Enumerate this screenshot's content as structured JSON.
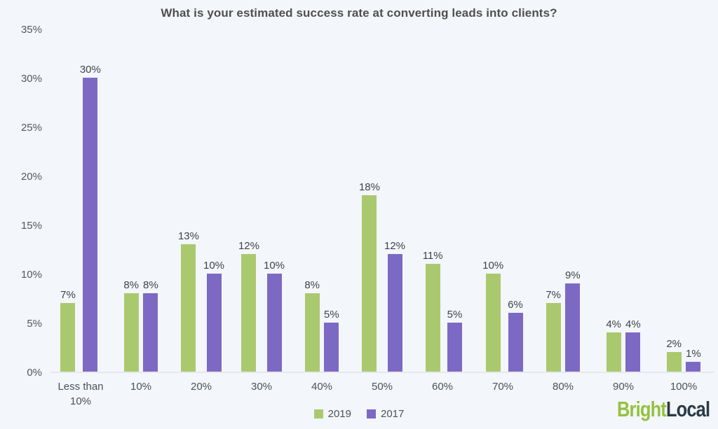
{
  "chart_data": {
    "type": "bar",
    "title": "What is your estimated success rate at converting leads into clients?",
    "categories": [
      "Less than 10%",
      "10%",
      "20%",
      "30%",
      "40%",
      "50%",
      "60%",
      "70%",
      "80%",
      "90%",
      "100%"
    ],
    "series": [
      {
        "name": "2019",
        "color": "#aac96f",
        "values": [
          7,
          8,
          13,
          12,
          8,
          18,
          11,
          10,
          7,
          4,
          2
        ]
      },
      {
        "name": "2017",
        "color": "#7c69c3",
        "values": [
          30,
          8,
          10,
          10,
          5,
          12,
          5,
          6,
          9,
          4,
          1
        ]
      }
    ],
    "value_label_suffix": "%",
    "y_ticks": [
      "0%",
      "5%",
      "10%",
      "15%",
      "20%",
      "25%",
      "30%",
      "35%"
    ],
    "ylim": [
      0,
      35
    ],
    "grid": false,
    "legend_position": "bottom-center",
    "value_labels": true,
    "xlabel": "",
    "ylabel": ""
  },
  "logo": {
    "part1": "Bright",
    "part2": "Local",
    "color1": "#95c13e",
    "color2": "#2c3a47"
  },
  "colors": {
    "background": "#F3F6FA",
    "axis_line": "#e6e6ec",
    "text": "#4c5258"
  }
}
